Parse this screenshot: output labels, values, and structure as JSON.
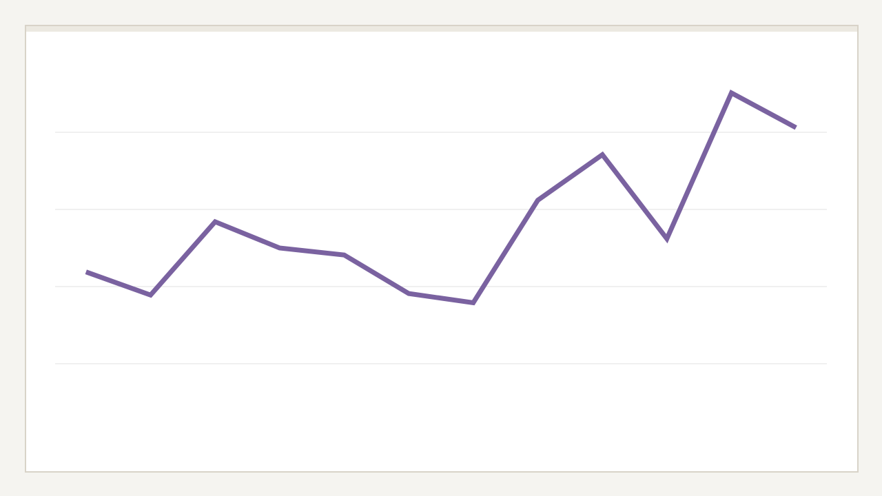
{
  "chart_data": {
    "type": "line",
    "categories": [
      null,
      null,
      null,
      null,
      null,
      null,
      null,
      null,
      null,
      null,
      null,
      null
    ],
    "values": [
      2.19,
      1.89,
      2.84,
      2.5,
      2.41,
      1.91,
      1.79,
      3.12,
      3.71,
      2.62,
      4.51,
      4.06
    ],
    "color": "#7a62a0",
    "ylim": [
      0,
      5
    ],
    "yticks": [
      1,
      2,
      3,
      4
    ],
    "grid": true
  }
}
